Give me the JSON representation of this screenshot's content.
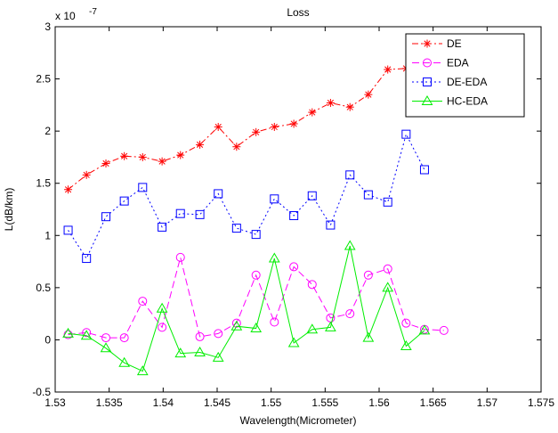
{
  "chart_data": {
    "type": "line",
    "title": "Loss",
    "xlabel": "Wavelength(Micrometer)",
    "ylabel": "L(dB/km)",
    "y_exponent_label": "x 10",
    "y_exponent_power": "-7",
    "xlim": [
      1.53,
      1.575
    ],
    "ylim": [
      -0.5,
      3
    ],
    "x_ticks": [
      1.53,
      1.535,
      1.54,
      1.545,
      1.55,
      1.555,
      1.56,
      1.565,
      1.57,
      1.575
    ],
    "x_tick_labels": [
      "1.53",
      "1.535",
      "1.54",
      "1.545",
      "1.55",
      "1.555",
      "1.56",
      "1.565",
      "1.57",
      "1.575"
    ],
    "y_ticks": [
      -0.5,
      0,
      0.5,
      1,
      1.5,
      2,
      2.5,
      3
    ],
    "y_tick_labels": [
      "-0.5",
      "0",
      "0.5",
      "1",
      "1.5",
      "2",
      "2.5",
      "3"
    ],
    "grid": false,
    "legend_position": "top-right",
    "x": [
      1.5312,
      1.5329,
      1.5347,
      1.5364,
      1.5381,
      1.5399,
      1.5416,
      1.5434,
      1.5451,
      1.5468,
      1.5486,
      1.5503,
      1.5521,
      1.5538,
      1.5555,
      1.5573,
      1.559,
      1.5608,
      1.5625,
      1.5642,
      1.566
    ],
    "series": [
      {
        "name": "DE",
        "color": "#ff0000",
        "marker": "star",
        "dash": "dash-dot",
        "values": [
          1.44,
          1.58,
          1.69,
          1.76,
          1.75,
          1.71,
          1.77,
          1.87,
          2.04,
          1.85,
          1.99,
          2.04,
          2.07,
          2.18,
          2.27,
          2.23,
          2.35,
          2.59,
          2.6,
          null,
          null
        ]
      },
      {
        "name": "EDA",
        "color": "#ff00ff",
        "marker": "circle",
        "dash": "dash",
        "values": [
          0.05,
          0.07,
          0.02,
          0.02,
          0.37,
          0.12,
          0.79,
          0.03,
          0.06,
          0.16,
          0.62,
          0.17,
          0.7,
          0.53,
          0.21,
          0.25,
          0.62,
          0.68,
          0.16,
          0.1,
          0.09
        ]
      },
      {
        "name": "DE-EDA",
        "color": "#0000ff",
        "marker": "square",
        "dash": "dot",
        "values": [
          1.05,
          0.78,
          1.18,
          1.33,
          1.46,
          1.08,
          1.21,
          1.2,
          1.4,
          1.07,
          1.01,
          1.35,
          1.19,
          1.38,
          1.1,
          1.58,
          1.39,
          1.32,
          1.97,
          1.63,
          null
        ]
      },
      {
        "name": "HC-EDA",
        "color": "#00ee00",
        "marker": "triangle",
        "dash": "solid",
        "values": [
          0.06,
          0.04,
          -0.08,
          -0.22,
          -0.3,
          0.3,
          -0.13,
          -0.12,
          -0.17,
          0.13,
          0.11,
          0.78,
          -0.03,
          0.1,
          0.12,
          0.9,
          0.02,
          0.5,
          -0.06,
          0.09,
          null
        ]
      }
    ]
  }
}
